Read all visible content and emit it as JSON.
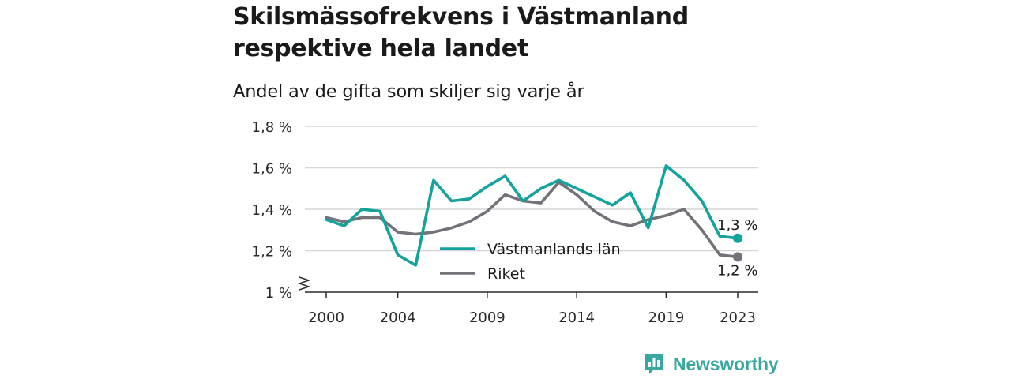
{
  "title": "Skilsmässofrekvens i Västmanland respektive hela landet",
  "subtitle": "Andel av de gifta som skiljer sig varje år",
  "brand": {
    "name": "Newsworthy",
    "color": "#3aa6a0",
    "icon": "newsworthy-logo-icon"
  },
  "chart_data": {
    "type": "line",
    "x": [
      2000,
      2001,
      2002,
      2003,
      2004,
      2005,
      2006,
      2007,
      2008,
      2009,
      2010,
      2011,
      2012,
      2013,
      2014,
      2015,
      2016,
      2017,
      2018,
      2019,
      2020,
      2021,
      2022,
      2023
    ],
    "x_ticks": [
      2000,
      2004,
      2009,
      2014,
      2019,
      2023
    ],
    "y_ticks": [
      1.0,
      1.2,
      1.4,
      1.6,
      1.8
    ],
    "y_tick_labels": [
      "1 %",
      "1,2 %",
      "1,4 %",
      "1,6 %",
      "1,8 %"
    ],
    "ylim": [
      1.0,
      1.8
    ],
    "xlim": [
      2000,
      2023
    ],
    "y_axis_break": true,
    "grid": true,
    "legend_position": "center",
    "series": [
      {
        "name": "Västmanlands län",
        "color": "#13a39b",
        "values": [
          1.35,
          1.32,
          1.4,
          1.39,
          1.18,
          1.13,
          1.54,
          1.44,
          1.45,
          1.51,
          1.56,
          1.44,
          1.5,
          1.54,
          1.5,
          1.46,
          1.42,
          1.48,
          1.31,
          1.61,
          1.54,
          1.44,
          1.27,
          1.26
        ],
        "end_label": "1,3 %"
      },
      {
        "name": "Riket",
        "color": "#737278",
        "values": [
          1.36,
          1.34,
          1.36,
          1.36,
          1.29,
          1.28,
          1.29,
          1.31,
          1.34,
          1.39,
          1.47,
          1.44,
          1.43,
          1.53,
          1.47,
          1.39,
          1.34,
          1.32,
          1.35,
          1.37,
          1.4,
          1.3,
          1.18,
          1.17
        ],
        "end_label": "1,2 %"
      }
    ]
  }
}
